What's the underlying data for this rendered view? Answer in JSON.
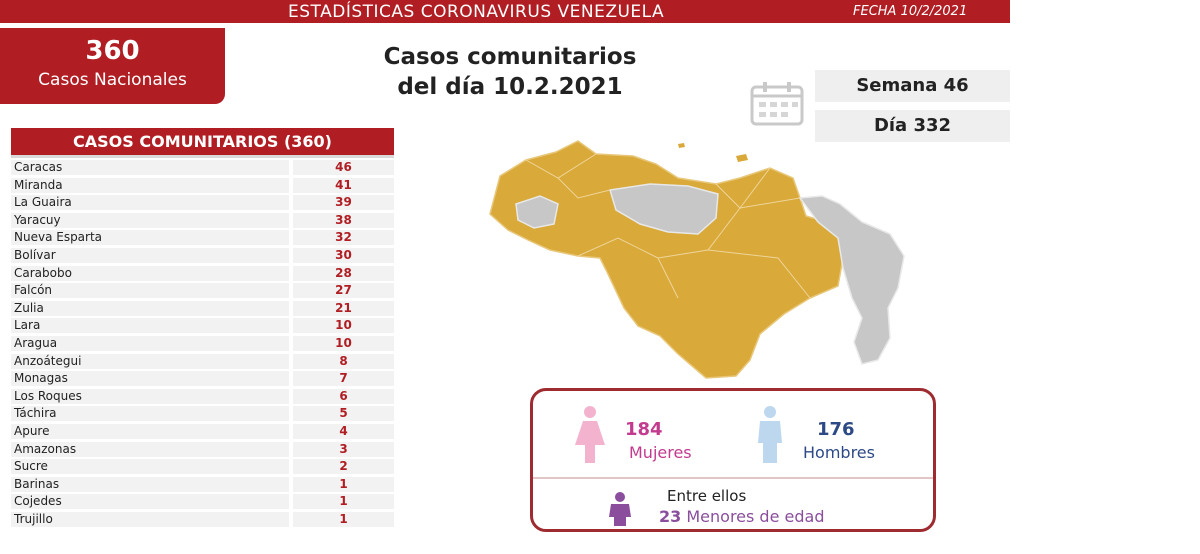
{
  "header": {
    "title": "ESTADÍSTICAS CORONAVIRUS VENEZUELA",
    "date": "FECHA 10/2/2021"
  },
  "national": {
    "value": "360",
    "label": "Casos Nacionales"
  },
  "main_title": {
    "line1": "Casos comunitarios",
    "line2": "del día 10.2.2021"
  },
  "week": "Semana 46",
  "day": "Día 332",
  "table_title": "CASOS COMUNITARIOS (360)",
  "chart_data": {
    "type": "table",
    "title": "CASOS COMUNITARIOS (360)",
    "rows": [
      {
        "state": "Caracas",
        "cases": "46"
      },
      {
        "state": "Miranda",
        "cases": "41"
      },
      {
        "state": "La Guaira",
        "cases": "39"
      },
      {
        "state": "Yaracuy",
        "cases": "38"
      },
      {
        "state": "Nueva Esparta",
        "cases": "32"
      },
      {
        "state": "Bolívar",
        "cases": "30"
      },
      {
        "state": "Carabobo",
        "cases": "28"
      },
      {
        "state": "Falcón",
        "cases": "27"
      },
      {
        "state": "Zulia",
        "cases": "21"
      },
      {
        "state": "Lara",
        "cases": "10"
      },
      {
        "state": "Aragua",
        "cases": "10"
      },
      {
        "state": "Anzoátegui",
        "cases": "8"
      },
      {
        "state": "Monagas",
        "cases": "7"
      },
      {
        "state": "Los Roques",
        "cases": "6"
      },
      {
        "state": "Táchira",
        "cases": "5"
      },
      {
        "state": "Apure",
        "cases": "4"
      },
      {
        "state": "Amazonas",
        "cases": "3"
      },
      {
        "state": "Sucre",
        "cases": "2"
      },
      {
        "state": "Barinas",
        "cases": "1"
      },
      {
        "state": "Cojedes",
        "cases": "1"
      },
      {
        "state": "Trujillo",
        "cases": "1"
      }
    ]
  },
  "gender": {
    "women_value": "184",
    "women_label": "Mujeres",
    "men_value": "176",
    "men_label": "Hombres",
    "among": "Entre ellos",
    "minors_value": "23",
    "minors_label": "Menores de edad"
  },
  "colors": {
    "brand_red": "#b01e23",
    "map_cases": "#d9a93a",
    "map_no_cases": "#c7c7c7",
    "women": "#c23b8e",
    "men": "#2d4a86",
    "minors": "#8a4e9c"
  },
  "icons": [
    "calendar-icon",
    "woman-figure-icon",
    "man-figure-icon",
    "child-figure-icon"
  ]
}
